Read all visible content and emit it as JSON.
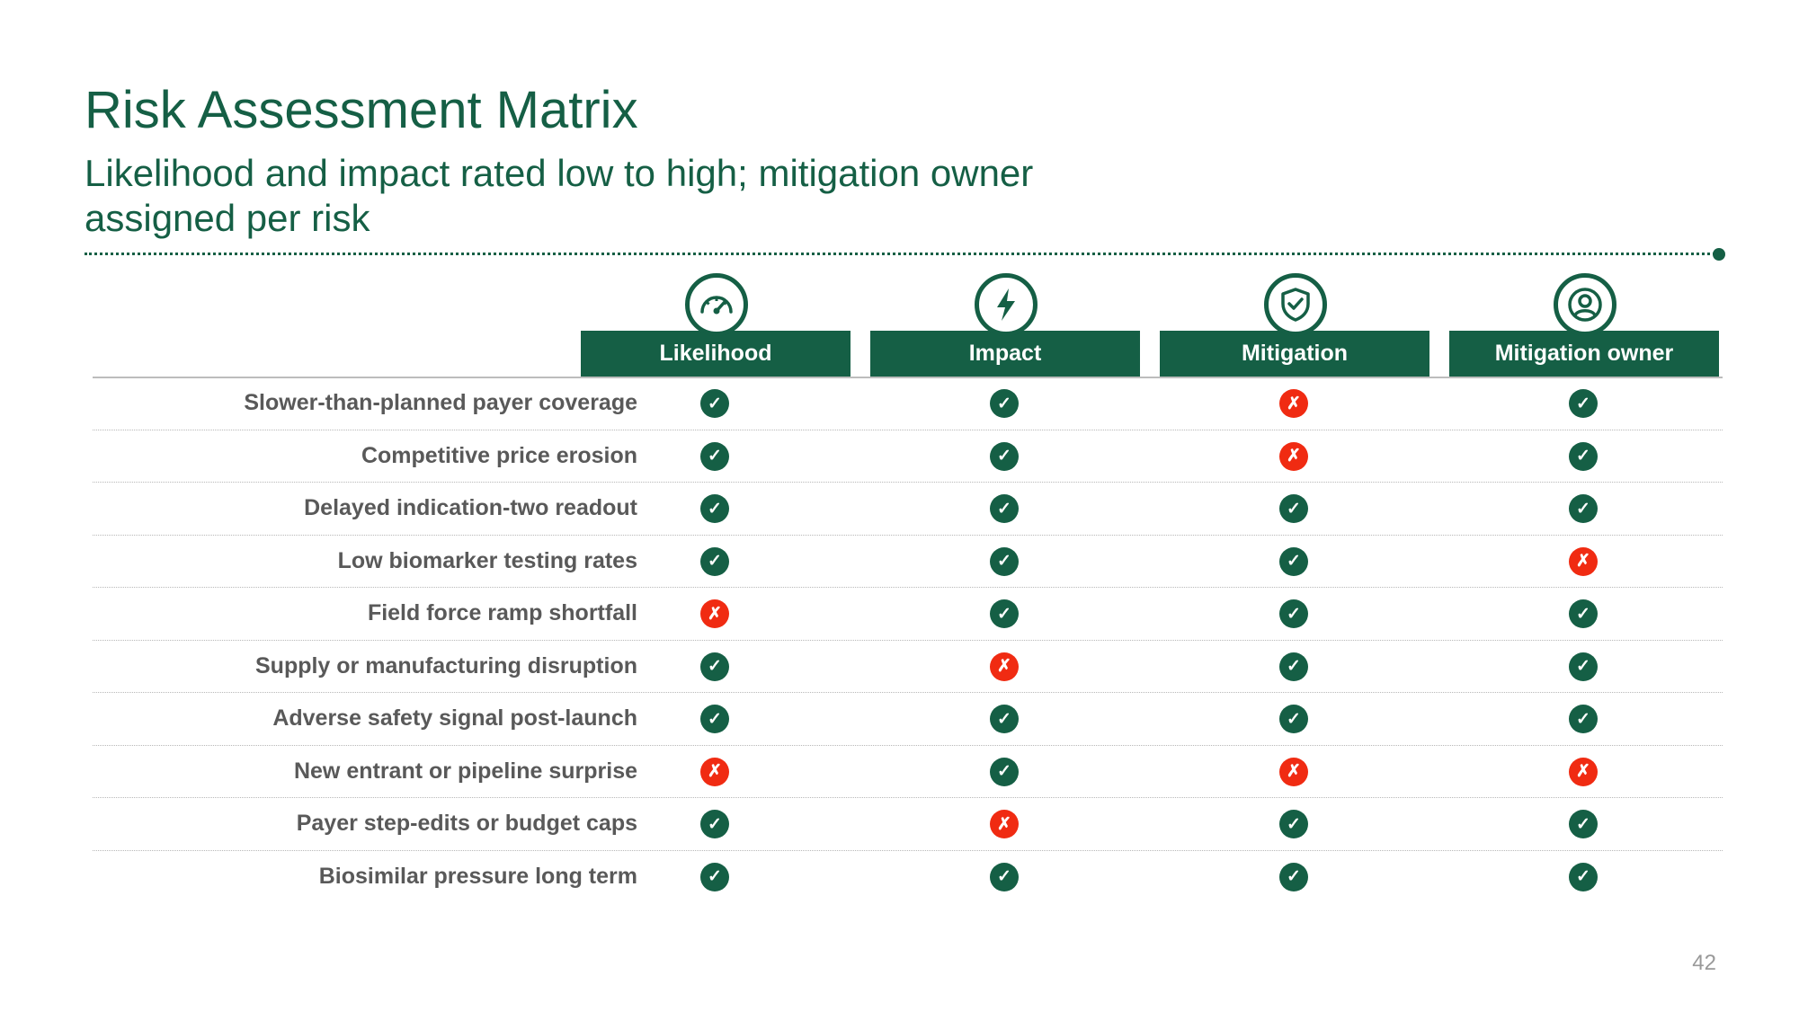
{
  "slide": {
    "title": "Risk Assessment Matrix",
    "subtitle": "Likelihood and impact rated low to high; mitigation owner assigned per risk",
    "page_number": "42"
  },
  "colors": {
    "accent": "#155f45",
    "positive": "#155f45",
    "negative": "#f02b12"
  },
  "columns": [
    {
      "label": "Likelihood",
      "icon": "gauge-icon"
    },
    {
      "label": "Impact",
      "icon": "lightning-icon"
    },
    {
      "label": "Mitigation",
      "icon": "shield-check-icon"
    },
    {
      "label": "Mitigation owner",
      "icon": "user-icon"
    }
  ],
  "marks": {
    "yes": "✓",
    "no": "✗"
  },
  "rows": [
    {
      "label": "Slower-than-planned payer coverage",
      "values": [
        "yes",
        "yes",
        "no",
        "yes"
      ]
    },
    {
      "label": "Competitive price erosion",
      "values": [
        "yes",
        "yes",
        "no",
        "yes"
      ]
    },
    {
      "label": "Delayed indication-two readout",
      "values": [
        "yes",
        "yes",
        "yes",
        "yes"
      ]
    },
    {
      "label": "Low biomarker testing rates",
      "values": [
        "yes",
        "yes",
        "yes",
        "no"
      ]
    },
    {
      "label": "Field force ramp shortfall",
      "values": [
        "no",
        "yes",
        "yes",
        "yes"
      ]
    },
    {
      "label": "Supply or manufacturing disruption",
      "values": [
        "yes",
        "no",
        "yes",
        "yes"
      ]
    },
    {
      "label": "Adverse safety signal post-launch",
      "values": [
        "yes",
        "yes",
        "yes",
        "yes"
      ]
    },
    {
      "label": "New entrant or pipeline surprise",
      "values": [
        "no",
        "yes",
        "no",
        "no"
      ]
    },
    {
      "label": "Payer step-edits or budget caps",
      "values": [
        "yes",
        "no",
        "yes",
        "yes"
      ]
    },
    {
      "label": "Biosimilar pressure long term",
      "values": [
        "yes",
        "yes",
        "yes",
        "yes"
      ]
    }
  ]
}
